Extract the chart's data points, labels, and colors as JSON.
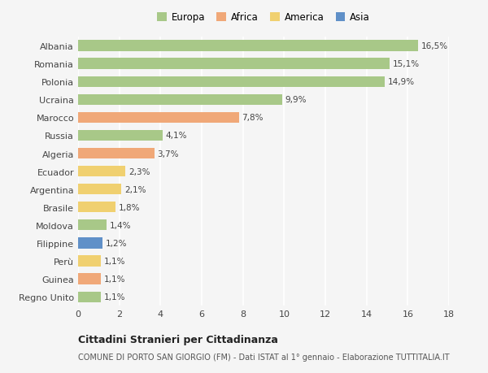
{
  "countries": [
    "Albania",
    "Romania",
    "Polonia",
    "Ucraina",
    "Marocco",
    "Russia",
    "Algeria",
    "Ecuador",
    "Argentina",
    "Brasile",
    "Moldova",
    "Filippine",
    "Perù",
    "Guinea",
    "Regno Unito"
  ],
  "values": [
    16.5,
    15.1,
    14.9,
    9.9,
    7.8,
    4.1,
    3.7,
    2.3,
    2.1,
    1.8,
    1.4,
    1.2,
    1.1,
    1.1,
    1.1
  ],
  "labels": [
    "16,5%",
    "15,1%",
    "14,9%",
    "9,9%",
    "7,8%",
    "4,1%",
    "3,7%",
    "2,3%",
    "2,1%",
    "1,8%",
    "1,4%",
    "1,2%",
    "1,1%",
    "1,1%",
    "1,1%"
  ],
  "continents": [
    "Europa",
    "Europa",
    "Europa",
    "Europa",
    "Africa",
    "Europa",
    "Africa",
    "America",
    "America",
    "America",
    "Europa",
    "Asia",
    "America",
    "Africa",
    "Europa"
  ],
  "continent_colors": {
    "Europa": "#a8c888",
    "Africa": "#f0a878",
    "America": "#f0d070",
    "Asia": "#6090c8"
  },
  "legend_order": [
    "Europa",
    "Africa",
    "America",
    "Asia"
  ],
  "title": "Cittadini Stranieri per Cittadinanza",
  "subtitle": "COMUNE DI PORTO SAN GIORGIO (FM) - Dati ISTAT al 1° gennaio - Elaborazione TUTTITALIA.IT",
  "xlim": [
    0,
    18
  ],
  "xticks": [
    0,
    2,
    4,
    6,
    8,
    10,
    12,
    14,
    16,
    18
  ],
  "background_color": "#f5f5f5",
  "grid_color": "#ffffff",
  "bar_height": 0.6
}
